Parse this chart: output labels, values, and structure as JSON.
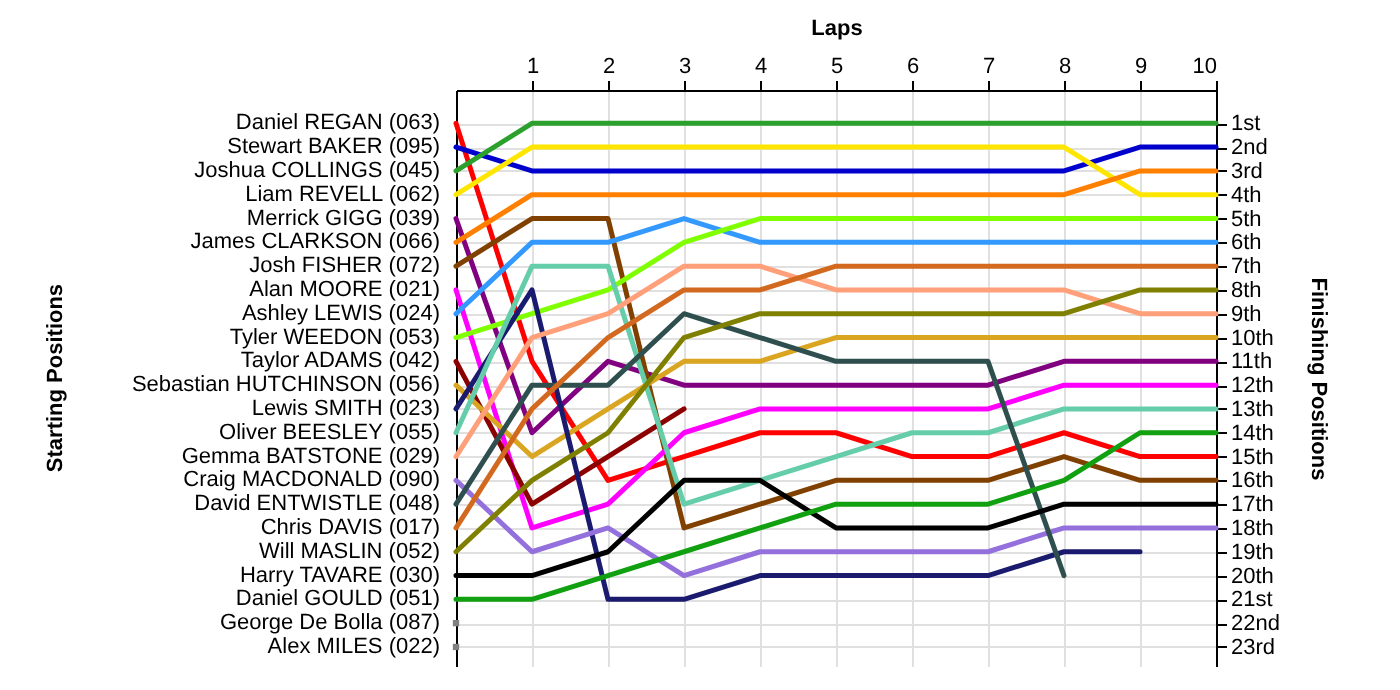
{
  "chart_data": {
    "type": "line",
    "xlabel": "Laps",
    "annotations": [
      "Starting Positions"
    ],
    "y2label": "Finishing Positions",
    "x": [
      0,
      1,
      2,
      3,
      4,
      5,
      6,
      7,
      8,
      9,
      10
    ],
    "xlim": [
      0,
      10
    ],
    "xticks": [
      1,
      2,
      3,
      4,
      5,
      6,
      7,
      8,
      9,
      10
    ],
    "ylim": [
      23.8,
      -0.4
    ],
    "yticks": [
      {
        "value": 1,
        "label": "1st"
      },
      {
        "value": 2,
        "label": "2nd"
      },
      {
        "value": 3,
        "label": "3rd"
      },
      {
        "value": 4,
        "label": "4th"
      },
      {
        "value": 5,
        "label": "5th"
      },
      {
        "value": 6,
        "label": "6th"
      },
      {
        "value": 7,
        "label": "7th"
      },
      {
        "value": 8,
        "label": "8th"
      },
      {
        "value": 9,
        "label": "9th"
      },
      {
        "value": 10,
        "label": "10th"
      },
      {
        "value": 11,
        "label": "11th"
      },
      {
        "value": 12,
        "label": "12th"
      },
      {
        "value": 13,
        "label": "13th"
      },
      {
        "value": 14,
        "label": "14th"
      },
      {
        "value": 15,
        "label": "15th"
      },
      {
        "value": 16,
        "label": "16th"
      },
      {
        "value": 17,
        "label": "17th"
      },
      {
        "value": 18,
        "label": "18th"
      },
      {
        "value": 19,
        "label": "19th"
      },
      {
        "value": 20,
        "label": "20th"
      },
      {
        "value": 21,
        "label": "21st"
      },
      {
        "value": 22,
        "label": "22nd"
      },
      {
        "value": 23,
        "label": "23rd"
      }
    ],
    "grid": true,
    "legend": "left",
    "marker": "none",
    "line_style": "solid",
    "series": [
      {
        "name": "Daniel REGAN (063)",
        "color": "#ff0000",
        "values": [
          1,
          11,
          16,
          15,
          14,
          14,
          15,
          15,
          14,
          15,
          15
        ]
      },
      {
        "name": "Stewart BAKER (095)",
        "color": "#0000cd",
        "values": [
          2,
          3,
          3,
          3,
          3,
          3,
          3,
          3,
          3,
          2,
          2
        ]
      },
      {
        "name": "Joshua COLLINGS (045)",
        "color": "#2ca02c",
        "values": [
          3,
          1,
          1,
          1,
          1,
          1,
          1,
          1,
          1,
          1,
          1
        ]
      },
      {
        "name": "Liam REVELL (062)",
        "color": "#ffe600",
        "values": [
          4,
          2,
          2,
          2,
          2,
          2,
          2,
          2,
          2,
          4,
          4
        ]
      },
      {
        "name": "Merrick GIGG (039)",
        "color": "#800080",
        "values": [
          5,
          14,
          11,
          12,
          12,
          12,
          12,
          12,
          11,
          11,
          11
        ]
      },
      {
        "name": "James CLARKSON (066)",
        "color": "#ff8000",
        "values": [
          6,
          4,
          4,
          4,
          4,
          4,
          4,
          4,
          4,
          3,
          3
        ]
      },
      {
        "name": "Josh FISHER (072)",
        "color": "#804000",
        "values": [
          7,
          5,
          5,
          18,
          17,
          16,
          16,
          16,
          15,
          16,
          16
        ]
      },
      {
        "name": "Alan MOORE (021)",
        "color": "#ff00ff",
        "values": [
          8,
          18,
          17,
          14,
          13,
          13,
          13,
          13,
          12,
          12,
          12
        ]
      },
      {
        "name": "Ashley LEWIS (024)",
        "color": "#3399ff",
        "values": [
          9,
          6,
          6,
          5,
          6,
          6,
          6,
          6,
          6,
          6,
          6
        ]
      },
      {
        "name": "Tyler WEEDON (053)",
        "color": "#80ff00",
        "values": [
          10,
          9,
          8,
          6,
          5,
          5,
          5,
          5,
          5,
          5,
          5
        ]
      },
      {
        "name": "Taylor ADAMS (042)",
        "color": "#8b0000",
        "values": [
          11,
          17,
          15,
          13,
          null,
          null,
          null,
          null,
          null,
          null,
          null
        ]
      },
      {
        "name": "Sebastian HUTCHINSON (056)",
        "color": "#daa520",
        "values": [
          12,
          15,
          13,
          11,
          11,
          10,
          10,
          10,
          10,
          10,
          10
        ]
      },
      {
        "name": "Lewis SMITH (023)",
        "color": "#1a1a6e",
        "values": [
          13,
          8,
          21,
          21,
          20,
          20,
          20,
          20,
          19,
          19,
          null
        ]
      },
      {
        "name": "Oliver BEESLEY (055)",
        "color": "#66cdaa",
        "values": [
          14,
          7,
          7,
          17,
          16,
          15,
          14,
          14,
          13,
          13,
          13
        ]
      },
      {
        "name": "Gemma BATSTONE (029)",
        "color": "#ffa07a",
        "values": [
          15,
          10,
          9,
          7,
          7,
          8,
          8,
          8,
          8,
          9,
          9
        ]
      },
      {
        "name": "Craig MACDONALD (090)",
        "color": "#9370db",
        "values": [
          16,
          19,
          18,
          20,
          19,
          19,
          19,
          19,
          18,
          18,
          18
        ]
      },
      {
        "name": "David ENTWISTLE (048)",
        "color": "#2f4f4f",
        "values": [
          17,
          12,
          12,
          9,
          10,
          11,
          11,
          11,
          20,
          null,
          null
        ]
      },
      {
        "name": "Chris DAVIS (017)",
        "color": "#d2691e",
        "values": [
          18,
          13,
          10,
          8,
          8,
          7,
          7,
          7,
          7,
          7,
          7
        ]
      },
      {
        "name": "Will MASLIN (052)",
        "color": "#808000",
        "values": [
          19,
          16,
          14,
          10,
          9,
          9,
          9,
          9,
          9,
          8,
          8
        ]
      },
      {
        "name": "Harry TAVARE (030)",
        "color": "#000000",
        "values": [
          20,
          20,
          19,
          16,
          16,
          18,
          18,
          18,
          17,
          17,
          17
        ]
      },
      {
        "name": "Daniel GOULD (051)",
        "color": "#10a010",
        "values": [
          21,
          21,
          20,
          19,
          18,
          17,
          17,
          17,
          16,
          14,
          14
        ]
      },
      {
        "name": "George De Bolla (087)",
        "color": "#808080",
        "marker": "square",
        "values": [
          22,
          null,
          null,
          null,
          null,
          null,
          null,
          null,
          null,
          null,
          null
        ]
      },
      {
        "name": "Alex MILES (022)",
        "color": "#808080",
        "marker": "square",
        "values": [
          23,
          null,
          null,
          null,
          null,
          null,
          null,
          null,
          null,
          null,
          null
        ]
      }
    ]
  }
}
